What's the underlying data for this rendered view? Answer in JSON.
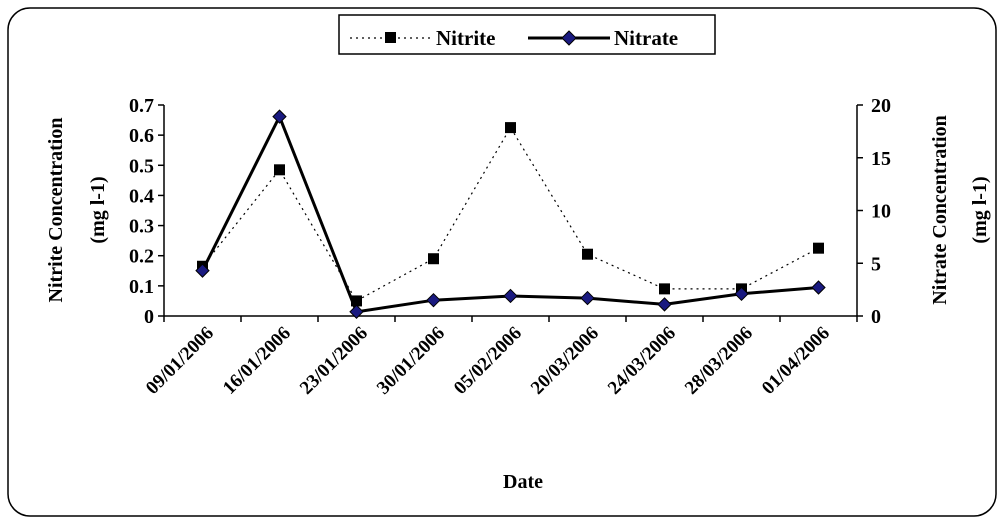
{
  "chart_data": {
    "type": "line",
    "title": "",
    "xlabel": "Date",
    "ylabel_left": "Nitrite Concentration (mg l-1)",
    "ylabel_left_lines": [
      "Nitrite Concentration",
      "(mg l-1)"
    ],
    "ylabel_right": "Nitrate Concentration (mg l-1)",
    "ylabel_right_lines": [
      "Nitrate Concentration",
      "(mg l-1)"
    ],
    "categories": [
      "09/01/2006",
      "16/01/2006",
      "23/01/2006",
      "30/01/2006",
      "05/02/2006",
      "20/03/2006",
      "24/03/2006",
      "28/03/2006",
      "01/04/2006"
    ],
    "ylim_left": [
      0,
      0.7
    ],
    "yticks_left": [
      "0",
      "0.1",
      "0.2",
      "0.3",
      "0.4",
      "0.5",
      "0.6",
      "0.7"
    ],
    "ylim_right": [
      0,
      20
    ],
    "yticks_right": [
      "0",
      "5",
      "10",
      "15",
      "20"
    ],
    "grid": false,
    "legend_position": "top-center",
    "series": [
      {
        "name": "Nitrite",
        "axis": "left",
        "style": "dotted",
        "marker": "square",
        "color": "#000000",
        "marker_color": "#000000",
        "values": [
          0.165,
          0.485,
          0.05,
          0.19,
          0.625,
          0.205,
          0.09,
          0.09,
          0.225
        ]
      },
      {
        "name": "Nitrate",
        "axis": "right",
        "style": "solid",
        "marker": "diamond",
        "color": "#000000",
        "marker_color": "#1a1a80",
        "values": [
          4.3,
          18.9,
          0.4,
          1.5,
          1.9,
          1.7,
          1.1,
          2.1,
          2.7
        ]
      }
    ]
  }
}
